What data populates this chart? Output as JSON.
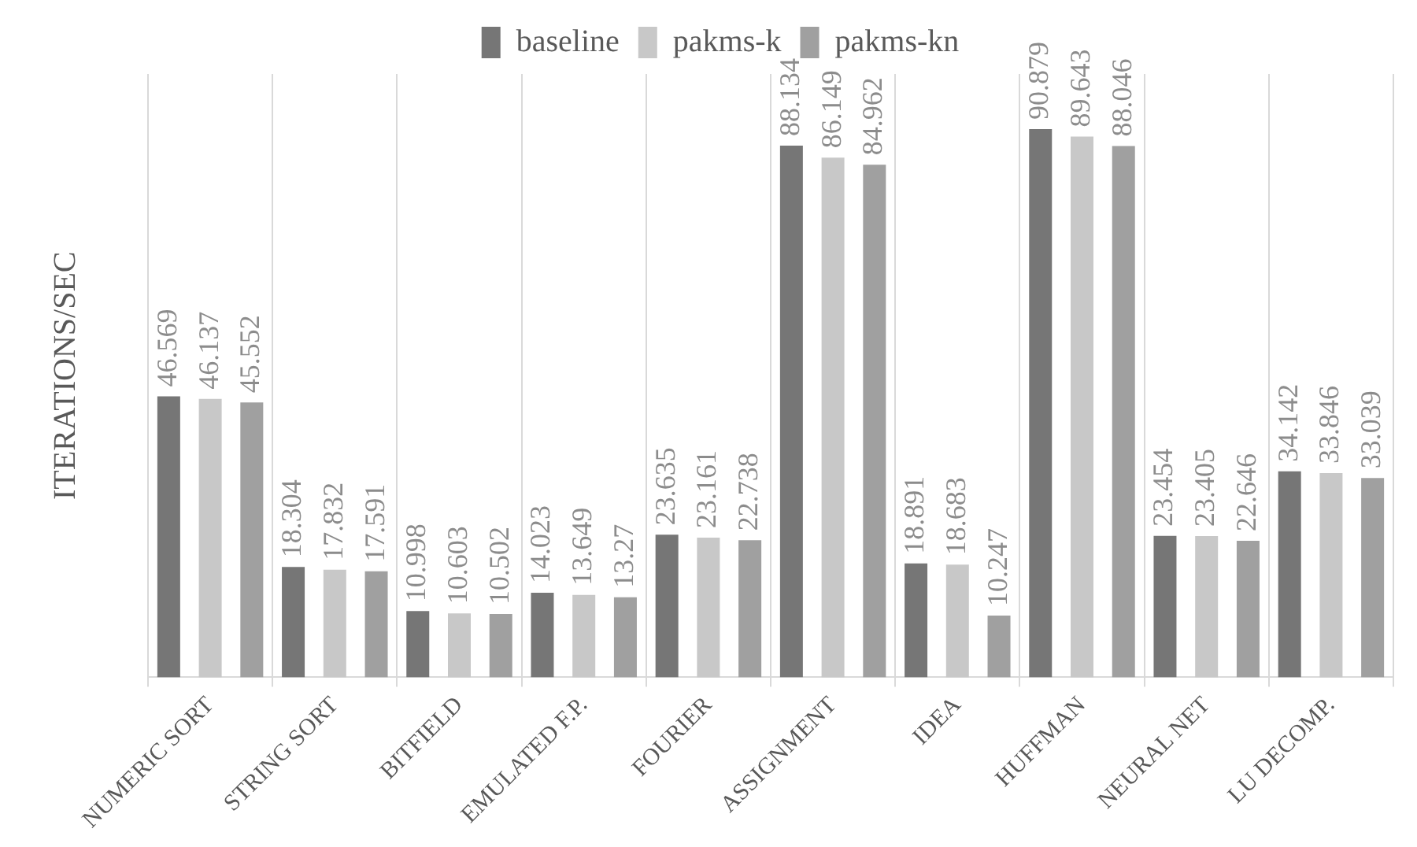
{
  "chart_data": {
    "type": "bar",
    "ylabel": "ITERATIONS/SEC",
    "categories": [
      "NUMERIC SORT",
      "STRING SORT",
      "BITFIELD",
      "EMULATED F.P.",
      "FOURIER",
      "ASSIGNMENT",
      "IDEA",
      "HUFFMAN",
      "NEURAL NET",
      "LU DECOMP."
    ],
    "series": [
      {
        "name": "baseline",
        "color": "#767676",
        "values": [
          46.569,
          18.304,
          10.998,
          14.023,
          23.635,
          88.134,
          18.891,
          90.879,
          23.454,
          34.142
        ]
      },
      {
        "name": "pakms-k",
        "color": "#c8c8c8",
        "values": [
          46.137,
          17.832,
          10.603,
          13.649,
          23.161,
          86.149,
          18.683,
          89.643,
          23.405,
          33.846
        ]
      },
      {
        "name": "pakms-kn",
        "color": "#a0a0a0",
        "values": [
          45.552,
          17.591,
          10.502,
          13.27,
          22.738,
          84.962,
          10.247,
          88.046,
          22.646,
          33.039
        ]
      }
    ],
    "ylim": [
      0,
      100
    ],
    "tick_labels": "x",
    "grid": "x",
    "legend": "top",
    "data_labels": true
  }
}
